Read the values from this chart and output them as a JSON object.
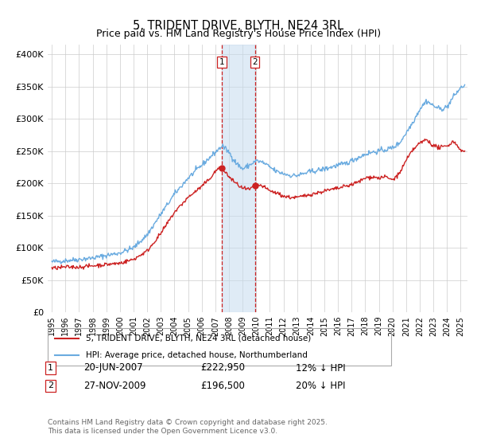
{
  "title": "5, TRIDENT DRIVE, BLYTH, NE24 3RL",
  "subtitle": "Price paid vs. HM Land Registry's House Price Index (HPI)",
  "ylabel_ticks": [
    "£0",
    "£50K",
    "£100K",
    "£150K",
    "£200K",
    "£250K",
    "£300K",
    "£350K",
    "£400K"
  ],
  "ytick_vals": [
    0,
    50000,
    100000,
    150000,
    200000,
    250000,
    300000,
    350000,
    400000
  ],
  "ylim": [
    0,
    415000
  ],
  "xlim_start": 1994.7,
  "xlim_end": 2025.5,
  "hpi_color": "#6aabe0",
  "price_color": "#cc2222",
  "vline_color": "#cc2222",
  "shade_color": "#c6dbef",
  "transaction1": {
    "date_num": 2007.47,
    "price": 222950,
    "label": "1",
    "hpi_diff": "12% ↓ HPI",
    "date_str": "20-JUN-2007",
    "price_str": "£222,950"
  },
  "transaction2": {
    "date_num": 2009.91,
    "price": 196500,
    "label": "2",
    "hpi_diff": "20% ↓ HPI",
    "date_str": "27-NOV-2009",
    "price_str": "£196,500"
  },
  "legend_line1": "5, TRIDENT DRIVE, BLYTH, NE24 3RL (detached house)",
  "legend_line2": "HPI: Average price, detached house, Northumberland",
  "footer": "Contains HM Land Registry data © Crown copyright and database right 2025.\nThis data is licensed under the Open Government Licence v3.0.",
  "xtick_years": [
    1995,
    1996,
    1997,
    1998,
    1999,
    2000,
    2001,
    2002,
    2003,
    2004,
    2005,
    2006,
    2007,
    2008,
    2009,
    2010,
    2011,
    2012,
    2013,
    2014,
    2015,
    2016,
    2017,
    2018,
    2019,
    2020,
    2021,
    2022,
    2023,
    2024,
    2025
  ],
  "hpi_anchors": [
    [
      1995.0,
      78000
    ],
    [
      1996.0,
      80000
    ],
    [
      1997.0,
      82000
    ],
    [
      1998.0,
      84000
    ],
    [
      1999.0,
      88000
    ],
    [
      2000.0,
      92000
    ],
    [
      2001.0,
      100000
    ],
    [
      2002.0,
      120000
    ],
    [
      2003.0,
      152000
    ],
    [
      2004.0,
      183000
    ],
    [
      2005.0,
      208000
    ],
    [
      2006.0,
      228000
    ],
    [
      2007.0,
      248000
    ],
    [
      2007.5,
      258000
    ],
    [
      2008.0,
      248000
    ],
    [
      2008.5,
      232000
    ],
    [
      2009.0,
      222000
    ],
    [
      2009.5,
      228000
    ],
    [
      2010.0,
      235000
    ],
    [
      2010.5,
      232000
    ],
    [
      2011.0,
      225000
    ],
    [
      2011.5,
      218000
    ],
    [
      2012.0,
      215000
    ],
    [
      2012.5,
      212000
    ],
    [
      2013.0,
      212000
    ],
    [
      2013.5,
      215000
    ],
    [
      2014.0,
      218000
    ],
    [
      2014.5,
      220000
    ],
    [
      2015.0,
      222000
    ],
    [
      2015.5,
      225000
    ],
    [
      2016.0,
      228000
    ],
    [
      2016.5,
      230000
    ],
    [
      2017.0,
      235000
    ],
    [
      2017.5,
      240000
    ],
    [
      2018.0,
      245000
    ],
    [
      2018.5,
      248000
    ],
    [
      2019.0,
      250000
    ],
    [
      2019.5,
      252000
    ],
    [
      2020.0,
      255000
    ],
    [
      2020.5,
      262000
    ],
    [
      2021.0,
      278000
    ],
    [
      2021.5,
      295000
    ],
    [
      2022.0,
      315000
    ],
    [
      2022.5,
      328000
    ],
    [
      2023.0,
      320000
    ],
    [
      2023.5,
      315000
    ],
    [
      2024.0,
      318000
    ],
    [
      2024.5,
      335000
    ],
    [
      2025.0,
      348000
    ],
    [
      2025.3,
      352000
    ]
  ],
  "price_anchors": [
    [
      1995.0,
      68000
    ],
    [
      1996.0,
      70000
    ],
    [
      1997.0,
      70000
    ],
    [
      1998.0,
      72000
    ],
    [
      1999.0,
      74000
    ],
    [
      2000.0,
      76000
    ],
    [
      2001.0,
      82000
    ],
    [
      2002.0,
      95000
    ],
    [
      2003.0,
      122000
    ],
    [
      2004.0,
      155000
    ],
    [
      2005.0,
      178000
    ],
    [
      2006.0,
      195000
    ],
    [
      2006.5,
      205000
    ],
    [
      2007.0,
      218000
    ],
    [
      2007.3,
      225000
    ],
    [
      2007.47,
      222950
    ],
    [
      2007.7,
      218000
    ],
    [
      2008.0,
      210000
    ],
    [
      2008.5,
      200000
    ],
    [
      2009.0,
      192000
    ],
    [
      2009.5,
      190000
    ],
    [
      2009.91,
      196500
    ],
    [
      2010.0,
      198000
    ],
    [
      2010.5,
      195000
    ],
    [
      2011.0,
      188000
    ],
    [
      2011.5,
      185000
    ],
    [
      2012.0,
      180000
    ],
    [
      2012.5,
      178000
    ],
    [
      2013.0,
      178000
    ],
    [
      2013.5,
      180000
    ],
    [
      2014.0,
      183000
    ],
    [
      2014.5,
      185000
    ],
    [
      2015.0,
      188000
    ],
    [
      2015.5,
      190000
    ],
    [
      2016.0,
      192000
    ],
    [
      2016.5,
      195000
    ],
    [
      2017.0,
      198000
    ],
    [
      2017.5,
      202000
    ],
    [
      2018.0,
      208000
    ],
    [
      2018.5,
      210000
    ],
    [
      2019.0,
      208000
    ],
    [
      2019.5,
      210000
    ],
    [
      2020.0,
      205000
    ],
    [
      2020.5,
      215000
    ],
    [
      2021.0,
      235000
    ],
    [
      2021.5,
      252000
    ],
    [
      2022.0,
      262000
    ],
    [
      2022.5,
      268000
    ],
    [
      2023.0,
      258000
    ],
    [
      2023.5,
      255000
    ],
    [
      2024.0,
      258000
    ],
    [
      2024.5,
      265000
    ],
    [
      2025.0,
      252000
    ],
    [
      2025.3,
      248000
    ]
  ]
}
